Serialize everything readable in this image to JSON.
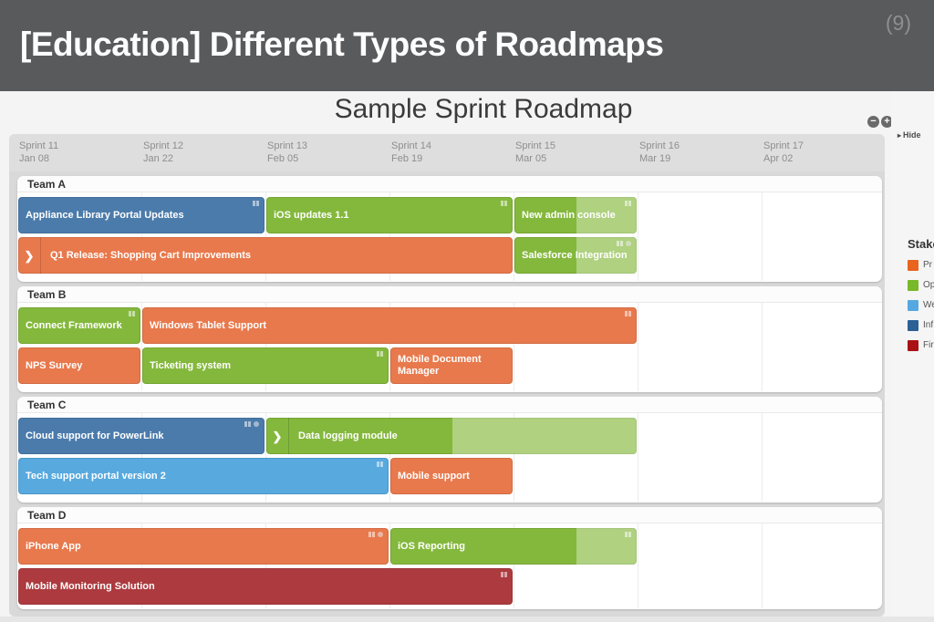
{
  "slide": {
    "title": "[Education] Different Types of Roadmaps",
    "page_number": "(9)"
  },
  "chart": {
    "title": "Sample Sprint Roadmap",
    "hide_label": "Hide",
    "zoom_out_label": "−",
    "zoom_in_label": "+",
    "sprints": [
      {
        "name": "Sprint 11",
        "date": "Jan 08"
      },
      {
        "name": "Sprint 12",
        "date": "Jan 22"
      },
      {
        "name": "Sprint 13",
        "date": "Feb 05"
      },
      {
        "name": "Sprint 14",
        "date": "Feb 19"
      },
      {
        "name": "Sprint 15",
        "date": "Mar 05"
      },
      {
        "name": "Sprint 16",
        "date": "Mar 19"
      },
      {
        "name": "Sprint 17",
        "date": "Apr 02"
      }
    ],
    "colors": {
      "blue": "#4b7bab",
      "green": "#84b83c",
      "orange": "#e8794c",
      "lightblue": "#57a9de",
      "darkred": "#ac3a3e"
    },
    "teams": [
      {
        "name": "Team A",
        "rows": [
          [
            {
              "label": "Appliance Library Portal Updates",
              "color": "blue",
              "start": 0,
              "end": 2,
              "grip": "bars"
            },
            {
              "label": "iOS updates 1.1",
              "color": "green",
              "start": 2,
              "end": 4,
              "grip": "bars"
            },
            {
              "label": "New admin console",
              "color": "green",
              "start": 4,
              "end": 5,
              "light_from": 4.5,
              "grip": "bars"
            }
          ],
          [
            {
              "label": "Q1 Release: Shopping Cart Improvements",
              "color": "orange",
              "start": 0,
              "end": 4,
              "chevron": true
            },
            {
              "label": "Salesforce Integration",
              "color": "green",
              "start": 4,
              "end": 5,
              "light_from": 4.5,
              "grip": "bars-dot"
            }
          ]
        ]
      },
      {
        "name": "Team B",
        "rows": [
          [
            {
              "label": "Connect Framework",
              "color": "green",
              "start": 0,
              "end": 1,
              "grip": "bars"
            },
            {
              "label": "Windows Tablet Support",
              "color": "orange",
              "start": 1,
              "end": 5,
              "grip": "bars"
            }
          ],
          [
            {
              "label": "NPS Survey",
              "color": "orange",
              "start": 0,
              "end": 1
            },
            {
              "label": "Ticketing system",
              "color": "green",
              "start": 1,
              "end": 3,
              "grip": "bars"
            },
            {
              "label": "Mobile Document Manager",
              "color": "orange",
              "start": 3,
              "end": 4
            }
          ]
        ]
      },
      {
        "name": "Team C",
        "rows": [
          [
            {
              "label": "Cloud support for PowerLink",
              "color": "blue",
              "start": 0,
              "end": 2,
              "grip": "bars-dot"
            },
            {
              "label": "Data logging module",
              "color": "green",
              "start": 2,
              "end": 5,
              "light_from": 3.5,
              "chevron": true
            }
          ],
          [
            {
              "label": "Tech support portal version 2",
              "color": "lightblue",
              "start": 0,
              "end": 3,
              "grip": "bars"
            },
            {
              "label": "Mobile support",
              "color": "orange",
              "start": 3,
              "end": 4
            }
          ]
        ]
      },
      {
        "name": "Team D",
        "rows": [
          [
            {
              "label": "iPhone App",
              "color": "orange",
              "start": 0,
              "end": 3,
              "grip": "bars-dot"
            },
            {
              "label": "iOS Reporting",
              "color": "green",
              "start": 3,
              "end": 5,
              "light_from": 4.5,
              "grip": "bars"
            }
          ],
          [
            {
              "label": "Mobile Monitoring Solution",
              "color": "darkred",
              "start": 0,
              "end": 4,
              "grip": "bars"
            }
          ]
        ]
      }
    ],
    "legend": {
      "title": "Stake",
      "items": [
        {
          "label": "Pr",
          "color": "#e8641f"
        },
        {
          "label": "Op",
          "color": "#79b829"
        },
        {
          "label": "We",
          "color": "#55a9e0"
        },
        {
          "label": "Inf",
          "color": "#2b6195"
        },
        {
          "label": "Fir",
          "color": "#a81215"
        }
      ]
    }
  }
}
